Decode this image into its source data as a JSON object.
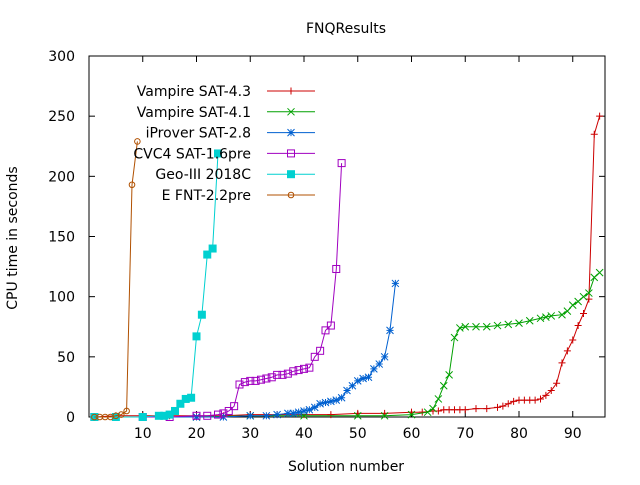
{
  "chart_data": {
    "type": "line",
    "title": "FNQResults",
    "xlabel": "Solution number",
    "ylabel": "CPU time in seconds",
    "xlim": [
      0,
      96
    ],
    "ylim": [
      0,
      300
    ],
    "xticks": [
      10,
      20,
      30,
      40,
      50,
      60,
      70,
      80,
      90
    ],
    "yticks": [
      0,
      50,
      100,
      150,
      200,
      250,
      300
    ],
    "grid": false,
    "legend_position": "top-left",
    "series": [
      {
        "name": "Vampire SAT-4.3",
        "color": "#cc0000",
        "marker": "plus",
        "x": [
          1,
          5,
          10,
          15,
          20,
          25,
          30,
          35,
          40,
          45,
          50,
          55,
          60,
          62,
          64,
          65,
          66,
          67,
          68,
          69,
          70,
          72,
          74,
          76,
          77,
          78,
          79,
          80,
          81,
          82,
          83,
          84,
          85,
          86,
          87,
          88,
          89,
          90,
          91,
          92,
          93,
          94,
          95
        ],
        "y": [
          0,
          1,
          1,
          1,
          1,
          1,
          2,
          2,
          2,
          2,
          3,
          3,
          4,
          4,
          5,
          5,
          6,
          6,
          6,
          6,
          6,
          7,
          7,
          8,
          9,
          11,
          13,
          14,
          14,
          14,
          14,
          15,
          18,
          22,
          28,
          45,
          55,
          64,
          76,
          86,
          98,
          235,
          250
        ]
      },
      {
        "name": "Vampire SAT-4.1",
        "color": "#00a000",
        "marker": "x",
        "x": [
          1,
          10,
          20,
          30,
          40,
          50,
          55,
          60,
          63,
          64,
          65,
          66,
          67,
          68,
          69,
          70,
          72,
          74,
          76,
          78,
          80,
          82,
          84,
          85,
          86,
          88,
          89,
          90,
          91,
          92,
          93,
          94,
          95
        ],
        "y": [
          0,
          0,
          0,
          1,
          1,
          1,
          1,
          2,
          4,
          7,
          15,
          26,
          35,
          66,
          74,
          75,
          75,
          75,
          76,
          77,
          78,
          80,
          82,
          83,
          84,
          85,
          88,
          93,
          96,
          100,
          103,
          116,
          120
        ]
      },
      {
        "name": "iProver SAT-2.8",
        "color": "#0060d0",
        "marker": "star",
        "x": [
          1,
          10,
          20,
          25,
          30,
          33,
          35,
          37,
          38,
          39,
          40,
          41,
          42,
          43,
          44,
          45,
          46,
          47,
          48,
          49,
          50,
          51,
          52,
          53,
          54,
          55,
          56,
          57
        ],
        "y": [
          0,
          0,
          0,
          0,
          1,
          1,
          2,
          3,
          3,
          4,
          5,
          6,
          8,
          11,
          12,
          13,
          14,
          16,
          22,
          26,
          30,
          32,
          33,
          40,
          44,
          50,
          72,
          111
        ]
      },
      {
        "name": "CVC4 SAT-1.6pre",
        "color": "#a000c0",
        "marker": "square",
        "x": [
          1,
          10,
          15,
          20,
          22,
          24,
          25,
          26,
          27,
          28,
          29,
          30,
          31,
          32,
          33,
          34,
          35,
          36,
          37,
          38,
          39,
          40,
          41,
          42,
          43,
          44,
          45,
          46,
          47
        ],
        "y": [
          0,
          0,
          0,
          1,
          1,
          2,
          3,
          5,
          9,
          27,
          29,
          30,
          30,
          31,
          32,
          33,
          35,
          35,
          36,
          38,
          39,
          40,
          41,
          50,
          55,
          72,
          76,
          123,
          211
        ]
      },
      {
        "name": "Geo-III 2018C",
        "color": "#00d0d0",
        "marker": "filled-square",
        "x": [
          1,
          5,
          10,
          13,
          14,
          15,
          16,
          17,
          18,
          19,
          20,
          21,
          22,
          23,
          24
        ],
        "y": [
          0,
          0,
          0,
          1,
          1,
          2,
          5,
          11,
          15,
          16,
          67,
          85,
          135,
          140,
          219
        ]
      },
      {
        "name": "E FNT-2.2pre",
        "color": "#b05000",
        "marker": "circle",
        "x": [
          1,
          2,
          3,
          4,
          5,
          6,
          7,
          8,
          9
        ],
        "y": [
          0,
          0,
          0,
          0,
          1,
          2,
          5,
          193,
          229
        ]
      }
    ]
  }
}
